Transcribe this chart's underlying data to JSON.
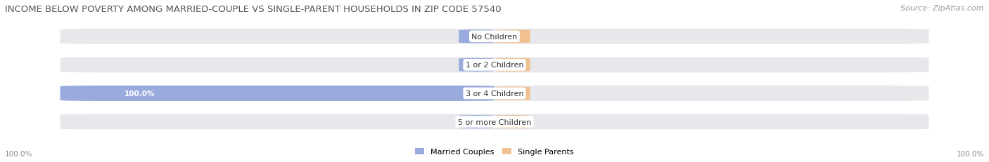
{
  "title": "INCOME BELOW POVERTY AMONG MARRIED-COUPLE VS SINGLE-PARENT HOUSEHOLDS IN ZIP CODE 57540",
  "source": "Source: ZipAtlas.com",
  "categories": [
    "No Children",
    "1 or 2 Children",
    "3 or 4 Children",
    "5 or more Children"
  ],
  "married_couples": [
    0.0,
    0.0,
    100.0,
    0.0
  ],
  "single_parents": [
    0.0,
    0.0,
    0.0,
    0.0
  ],
  "married_color": "#99aadd",
  "single_color": "#f0c090",
  "bar_bg_color": "#e8e8ec",
  "title_color": "#555555",
  "source_color": "#999999",
  "label_color_outside": "#888888",
  "label_color_inside": "white",
  "axis_label_left": "100.0%",
  "axis_label_right": "100.0%",
  "legend_married": "Married Couples",
  "legend_single": "Single Parents",
  "title_fontsize": 9.5,
  "source_fontsize": 8,
  "cat_fontsize": 8,
  "val_fontsize": 7.5,
  "legend_fontsize": 8,
  "axis_fontsize": 7.5,
  "figsize": [
    14.06,
    2.32
  ]
}
